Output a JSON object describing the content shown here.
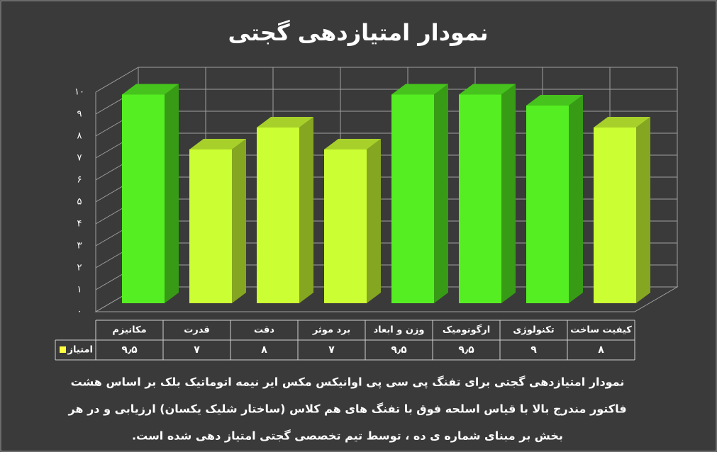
{
  "chart_data": {
    "type": "bar3d",
    "title": "نمودار امتیازدهی گجتی",
    "categories": [
      "مکانیزم",
      "قدرت",
      "دقت",
      "برد موثر",
      "وزن و ابعاد",
      "ارگونومیک",
      "تکنولوژی",
      "کیفیت ساخت"
    ],
    "series": [
      {
        "name": "امتیاز",
        "legend_color": "#ffff40",
        "values": [
          9.5,
          7,
          8,
          7,
          9.5,
          9.5,
          9,
          8
        ],
        "value_labels": [
          "۹٫۵",
          "۷",
          "۸",
          "۷",
          "۹٫۵",
          "۹٫۵",
          "۹",
          "۸"
        ],
        "colors": [
          "#55ee22",
          "#ccff33",
          "#ccff33",
          "#ccff33",
          "#55ee22",
          "#55ee22",
          "#55ee22",
          "#ccff33"
        ]
      }
    ],
    "ylim": [
      0,
      10
    ],
    "yticks": [
      {
        "value": 0,
        "label": "۰"
      },
      {
        "value": 1,
        "label": "۱"
      },
      {
        "value": 2,
        "label": "۲"
      },
      {
        "value": 3,
        "label": "۳"
      },
      {
        "value": 4,
        "label": "۴"
      },
      {
        "value": 5,
        "label": "۵"
      },
      {
        "value": 6,
        "label": "۶"
      },
      {
        "value": 7,
        "label": "۷"
      },
      {
        "value": 8,
        "label": "۸"
      },
      {
        "value": 9,
        "label": "۹"
      },
      {
        "value": 10,
        "label": "۱۰"
      }
    ],
    "grid": true,
    "caption": [
      "نمودار امتیازدهی گجتی برای تفنگ پی سی پی اوانیکس مکس ایر نیمه اتوماتیک بلک بر اساس هشت",
      "فاکتور مندرج بالا با قیاس اسلحه فوق با تفنگ های هم کلاس (ساختار شلیک یکسان) ارزیابی و در هر",
      "بخش بر مبنای شماره ی ده ، توسط تیم تخصصی گجتی امتیاز دهی شده است."
    ]
  }
}
